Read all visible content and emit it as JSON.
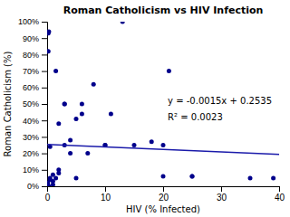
{
  "chart_data": {
    "type": "scatter",
    "title": "Roman Catholicism vs HIV Infection",
    "xlabel": "HIV (% Infected)",
    "ylabel": "Roman Catholicism (%)",
    "series": [
      {
        "type": "scatter",
        "color": "#00008B",
        "x": [
          0.1,
          0.1,
          0.1,
          0.1,
          0.1,
          0.2,
          0.2,
          0.3,
          0.3,
          0.5,
          0.5,
          0.5,
          1.0,
          1.0,
          1.0,
          1.5,
          1.5,
          2.0,
          2.0,
          2.0,
          3.0,
          3.0,
          3.0,
          4.0,
          4.0,
          5.0,
          5.0,
          6.0,
          6.0,
          7.0,
          8.0,
          10.0,
          10.0,
          11.0,
          13.0,
          15.0,
          18.0,
          20.0,
          20.0,
          21.0,
          25.0,
          25.0,
          35.0,
          39.0
        ],
        "values": [
          0.0,
          0.01,
          0.02,
          0.0,
          0.0,
          0.93,
          0.82,
          0.94,
          0.0,
          0.24,
          0.05,
          0.04,
          0.07,
          0.03,
          0.01,
          0.7,
          0.05,
          0.38,
          0.1,
          0.08,
          0.5,
          0.5,
          0.25,
          0.28,
          0.2,
          0.41,
          0.05,
          0.5,
          0.44,
          0.2,
          0.62,
          0.25,
          0.25,
          0.44,
          1.0,
          0.25,
          0.27,
          0.25,
          0.06,
          0.7,
          0.06,
          0.06,
          0.05,
          0.05
        ]
      },
      {
        "type": "line",
        "color": "#1a1aaa",
        "x": [
          0,
          40
        ],
        "values": [
          0.2535,
          0.1935
        ]
      }
    ],
    "annotations": [
      {
        "text": "y = -0.0015x + 0.2535",
        "color": "#000000"
      },
      {
        "text": "R² = 0.0023",
        "color": "#000000"
      }
    ],
    "xlim": [
      0,
      40
    ],
    "ylim": [
      0,
      1.0
    ],
    "xticks": [
      0,
      10,
      20,
      30,
      40
    ],
    "yticks": [
      {
        "value": 0.0,
        "label": "0%"
      },
      {
        "value": 0.1,
        "label": "10%"
      },
      {
        "value": 0.2,
        "label": "20%"
      },
      {
        "value": 0.3,
        "label": "30%"
      },
      {
        "value": 0.4,
        "label": "40%"
      },
      {
        "value": 0.5,
        "label": "50%"
      },
      {
        "value": 0.6,
        "label": "60%"
      },
      {
        "value": 0.7,
        "label": "70%"
      },
      {
        "value": 0.8,
        "label": "80%"
      },
      {
        "value": 0.9,
        "label": "90%"
      },
      {
        "value": 1.0,
        "label": "100%"
      }
    ]
  }
}
